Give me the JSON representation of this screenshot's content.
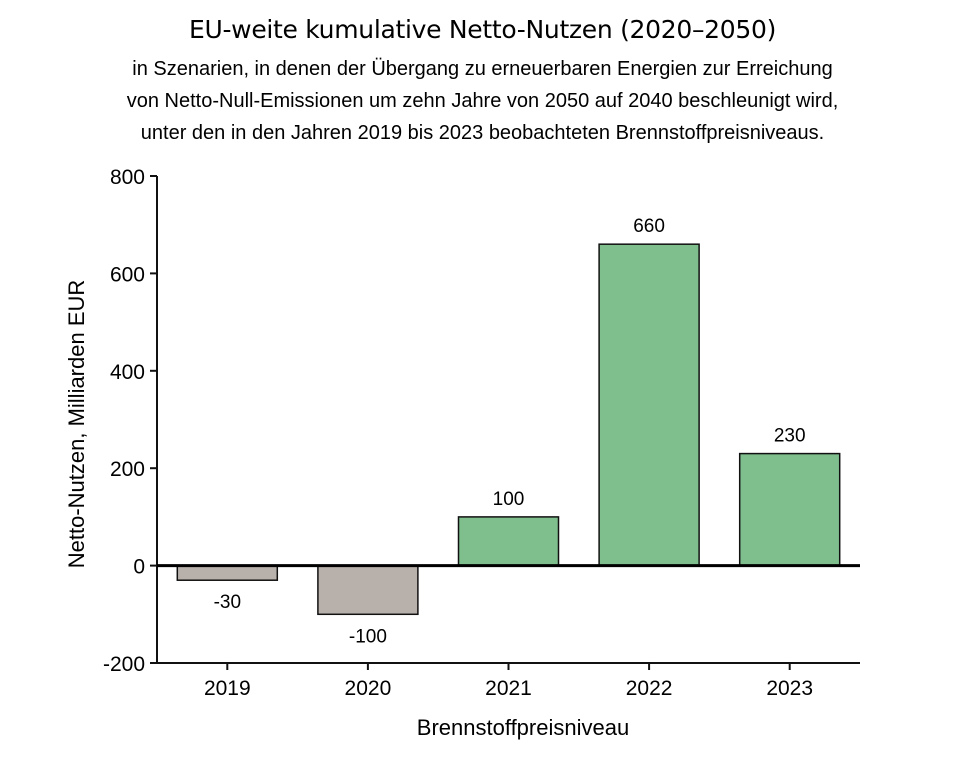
{
  "chart_data": {
    "type": "bar",
    "title": "EU-weite kumulative Netto-Nutzen (2020–2050)",
    "subtitle_lines": [
      "in Szenarien, in denen der Übergang zu erneuerbaren Energien zur Erreichung",
      "von Netto-Null-Emissionen um zehn Jahre von 2050 auf 2040 beschleunigt wird,",
      "unter den in den Jahren 2019 bis 2023 beobachteten Brennstoffpreisniveaus."
    ],
    "xlabel": "Brennstoffpreisniveau",
    "ylabel": "Netto-Nutzen,  Milliarden EUR",
    "categories": [
      "2019",
      "2020",
      "2021",
      "2022",
      "2023"
    ],
    "values": [
      -30,
      -100,
      100,
      660,
      230
    ],
    "value_labels": [
      "-30",
      "-100",
      "100",
      "660",
      "230"
    ],
    "ylim": [
      -200,
      800
    ],
    "yticks": [
      -200,
      0,
      200,
      400,
      600,
      800
    ],
    "ytick_labels": [
      "-200",
      "0",
      "200",
      "400",
      "600",
      "800"
    ],
    "grid": false,
    "colors": {
      "positive": "#7fbf8e",
      "negative": "#b8b0aa",
      "outline": "#111111"
    }
  }
}
